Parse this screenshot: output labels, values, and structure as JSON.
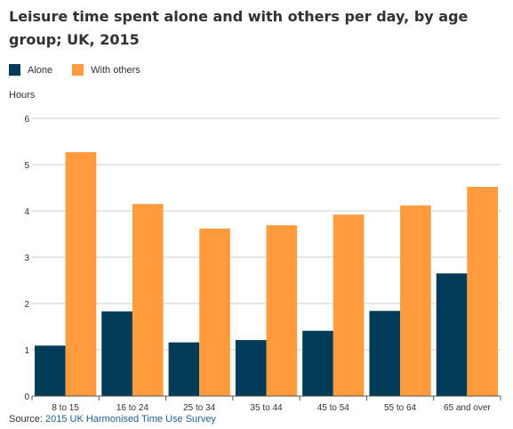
{
  "title": "Leisure time spent alone and with others per day, by age group; UK, 2015",
  "source": {
    "prefix": "Source: ",
    "link_text": "2015 UK Harmonised Time Use Survey"
  },
  "colors": {
    "alone": "#003c57",
    "with_others": "#ff9a3d",
    "grid": "#cccccc",
    "axis": "#555555",
    "link": "#206095"
  },
  "chart_data": {
    "type": "bar",
    "title": "Leisure time spent alone and with others per day, by age group; UK, 2015",
    "xlabel": "",
    "ylabel": "Hours",
    "ylim": [
      0,
      6
    ],
    "yticks": [
      0,
      1,
      2,
      3,
      4,
      5,
      6
    ],
    "grid": true,
    "legend_position": "top-left",
    "categories": [
      "8 to 15",
      "16 to 24",
      "25 to 34",
      "35 to 44",
      "45 to 54",
      "55 to 64",
      "65 and over"
    ],
    "series": [
      {
        "name": "Alone",
        "color": "#003c57",
        "values": [
          1.09,
          1.83,
          1.16,
          1.21,
          1.41,
          1.84,
          2.65
        ]
      },
      {
        "name": "With others",
        "color": "#ff9a3d",
        "values": [
          5.27,
          4.15,
          3.62,
          3.69,
          3.92,
          4.12,
          4.52
        ]
      }
    ]
  }
}
